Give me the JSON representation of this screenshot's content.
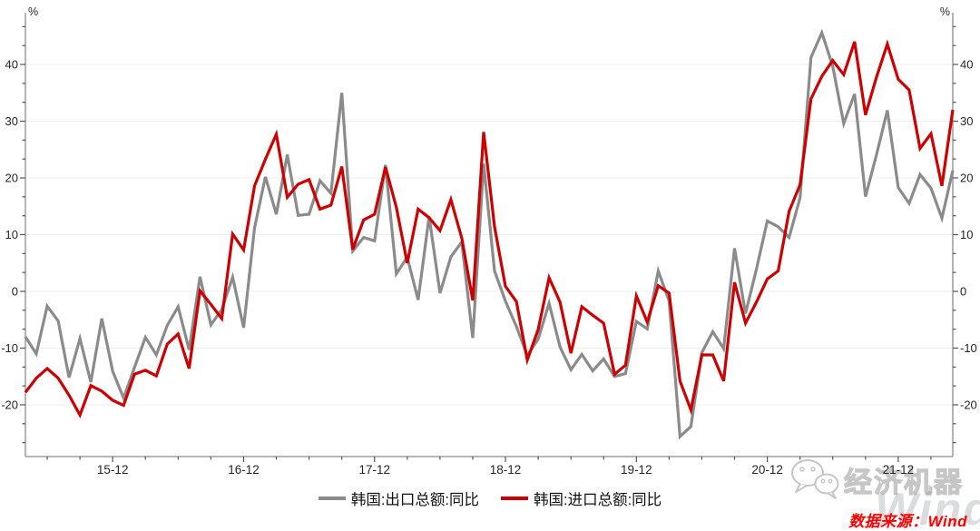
{
  "chart_data": {
    "type": "line",
    "unit_label_left": "%",
    "unit_label_right": "%",
    "x_tick_labels": [
      "15-12",
      "16-12",
      "17-12",
      "18-12",
      "19-12",
      "20-12",
      "21-12"
    ],
    "x_major_indices": [
      8,
      20,
      32,
      44,
      56,
      68,
      80
    ],
    "x_minor_step_months": 3,
    "grid": "horizontal-only",
    "legend_position": "bottom-center",
    "y_axis": {
      "min": -29,
      "max": 49,
      "major_ticks": [
        -20,
        -10,
        0,
        10,
        20,
        30,
        40
      ],
      "minor_divisions_per_major": 3
    },
    "colors": {
      "axis": "#8c8c8c",
      "tick": "#555555",
      "label": "#262626",
      "grid": "#efefef"
    },
    "months": [
      "2015-04",
      "2015-05",
      "2015-06",
      "2015-07",
      "2015-08",
      "2015-09",
      "2015-10",
      "2015-11",
      "2015-12",
      "2016-01",
      "2016-02",
      "2016-03",
      "2016-04",
      "2016-05",
      "2016-06",
      "2016-07",
      "2016-08",
      "2016-09",
      "2016-10",
      "2016-11",
      "2016-12",
      "2017-01",
      "2017-02",
      "2017-03",
      "2017-04",
      "2017-05",
      "2017-06",
      "2017-07",
      "2017-08",
      "2017-09",
      "2017-10",
      "2017-11",
      "2017-12",
      "2018-01",
      "2018-02",
      "2018-03",
      "2018-04",
      "2018-05",
      "2018-06",
      "2018-07",
      "2018-08",
      "2018-09",
      "2018-10",
      "2018-11",
      "2018-12",
      "2019-01",
      "2019-02",
      "2019-03",
      "2019-04",
      "2019-05",
      "2019-06",
      "2019-07",
      "2019-08",
      "2019-09",
      "2019-10",
      "2019-11",
      "2019-12",
      "2020-01",
      "2020-02",
      "2020-03",
      "2020-04",
      "2020-05",
      "2020-06",
      "2020-07",
      "2020-08",
      "2020-09",
      "2020-10",
      "2020-11",
      "2020-12",
      "2021-01",
      "2021-02",
      "2021-03",
      "2021-04",
      "2021-05",
      "2021-06",
      "2021-07",
      "2021-08",
      "2021-09",
      "2021-10",
      "2021-11",
      "2021-12",
      "2022-01",
      "2022-02",
      "2022-03",
      "2022-04",
      "2022-05"
    ],
    "series": [
      {
        "name": "韩国:出口总额:同比",
        "color": "#8b8b8b",
        "values": [
          -8.0,
          -11.0,
          -2.6,
          -5.2,
          -15.2,
          -8.3,
          -16.0,
          -4.8,
          -14.1,
          -18.8,
          -13.4,
          -8.1,
          -11.2,
          -6.0,
          -2.7,
          -10.3,
          2.6,
          -5.9,
          -3.2,
          2.5,
          -6.4,
          11.2,
          20.2,
          13.6,
          24.1,
          13.4,
          13.6,
          19.5,
          17.3,
          35.0,
          7.1,
          9.5,
          8.9,
          22.3,
          3.1,
          6.0,
          -1.5,
          13.2,
          -0.3,
          6.1,
          8.7,
          -8.2,
          22.5,
          3.6,
          -1.7,
          -6.2,
          -11.3,
          -8.4,
          -2.1,
          -9.8,
          -13.8,
          -11.1,
          -14.0,
          -11.9,
          -15.0,
          -14.5,
          -5.3,
          -6.6,
          3.6,
          -1.7,
          -25.6,
          -23.8,
          -10.8,
          -7.1,
          -10.1,
          7.6,
          -3.9,
          3.9,
          12.4,
          11.4,
          9.5,
          16.5,
          41.2,
          45.6,
          39.7,
          29.6,
          34.8,
          16.7,
          24.0,
          31.9,
          18.3,
          15.5,
          20.6,
          18.2,
          12.9,
          21.3
        ]
      },
      {
        "name": "韩国:进口总额:同比",
        "color": "#cc0000",
        "values": [
          -17.8,
          -15.3,
          -13.6,
          -15.3,
          -18.3,
          -21.8,
          -16.6,
          -17.6,
          -19.2,
          -20.1,
          -14.6,
          -13.9,
          -14.9,
          -9.3,
          -7.5,
          -13.6,
          0.1,
          -2.3,
          -4.8,
          10.1,
          7.3,
          18.6,
          23.3,
          27.7,
          16.6,
          18.9,
          19.7,
          14.5,
          15.2,
          22.0,
          7.4,
          12.6,
          13.6,
          21.9,
          14.8,
          5.0,
          14.5,
          13.0,
          10.7,
          16.2,
          9.4,
          -1.6,
          28.1,
          11.4,
          0.9,
          -1.8,
          -12.1,
          -6.7,
          2.4,
          -1.9,
          -10.9,
          -2.7,
          -4.2,
          -5.6,
          -14.6,
          -13.0,
          -0.8,
          -5.4,
          1.0,
          -0.3,
          -15.8,
          -20.9,
          -11.2,
          -11.2,
          -15.8,
          1.6,
          -5.6,
          -1.9,
          2.2,
          3.6,
          14.1,
          18.8,
          33.9,
          37.9,
          40.7,
          38.2,
          44.0,
          31.1,
          37.7,
          43.6,
          37.4,
          35.5,
          25.2,
          27.8,
          18.6,
          32.0
        ]
      }
    ]
  },
  "footer": {
    "watermark_brand": "经济机器",
    "watermark_wind": "Wind",
    "source_label": "数据来源：Wind",
    "source_color": "#ff0000",
    "wechat_icon": "wechat-bubbles-icon"
  }
}
